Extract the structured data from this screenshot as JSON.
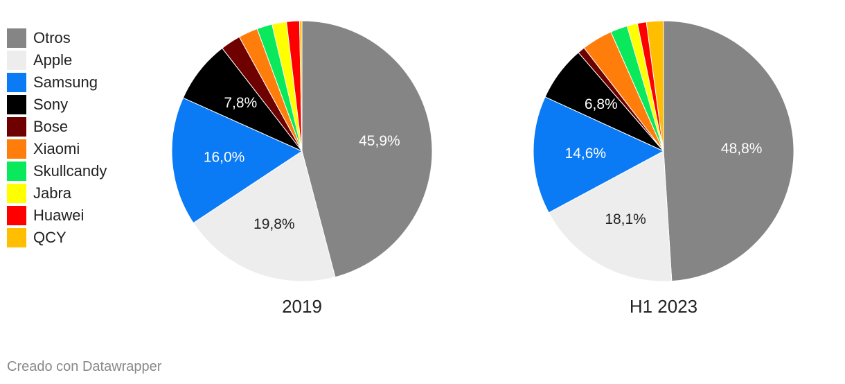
{
  "chart_data": [
    {
      "type": "pie",
      "title": "2019",
      "slices": [
        {
          "name": "Otros",
          "value": 45.9,
          "label": "45,9%"
        },
        {
          "name": "Apple",
          "value": 19.8,
          "label": "19,8%"
        },
        {
          "name": "Samsung",
          "value": 16.0,
          "label": "16,0%"
        },
        {
          "name": "Sony",
          "value": 7.8,
          "label": "7,8%"
        },
        {
          "name": "Bose",
          "value": 2.5,
          "label": ""
        },
        {
          "name": "Xiaomi",
          "value": 2.4,
          "label": ""
        },
        {
          "name": "Skullcandy",
          "value": 1.9,
          "label": ""
        },
        {
          "name": "Jabra",
          "value": 1.8,
          "label": ""
        },
        {
          "name": "Huawei",
          "value": 1.6,
          "label": ""
        },
        {
          "name": "QCY",
          "value": 0.3,
          "label": ""
        }
      ]
    },
    {
      "type": "pie",
      "title": "H1 2023",
      "slices": [
        {
          "name": "Otros",
          "value": 48.8,
          "label": "48,8%"
        },
        {
          "name": "Apple",
          "value": 18.1,
          "label": "18,1%"
        },
        {
          "name": "Samsung",
          "value": 14.6,
          "label": "14,6%"
        },
        {
          "name": "Sony",
          "value": 6.8,
          "label": "6,8%"
        },
        {
          "name": "Bose",
          "value": 0.9,
          "label": ""
        },
        {
          "name": "Xiaomi",
          "value": 3.8,
          "label": ""
        },
        {
          "name": "Skullcandy",
          "value": 2.1,
          "label": ""
        },
        {
          "name": "Jabra",
          "value": 1.3,
          "label": ""
        },
        {
          "name": "Huawei",
          "value": 1.1,
          "label": ""
        },
        {
          "name": "QCY",
          "value": 2.1,
          "label": ""
        }
      ]
    }
  ],
  "legend": [
    {
      "name": "Otros",
      "color": "#858585"
    },
    {
      "name": "Apple",
      "color": "#ededed"
    },
    {
      "name": "Samsung",
      "color": "#0a7af5"
    },
    {
      "name": "Sony",
      "color": "#000000"
    },
    {
      "name": "Bose",
      "color": "#6e0000"
    },
    {
      "name": "Xiaomi",
      "color": "#ff7d0a"
    },
    {
      "name": "Skullcandy",
      "color": "#0ae85b"
    },
    {
      "name": "Jabra",
      "color": "#ffff00"
    },
    {
      "name": "Huawei",
      "color": "#ff0000"
    },
    {
      "name": "QCY",
      "color": "#ffbf00"
    }
  ],
  "label_colors": {
    "Otros": "#ffffff",
    "Apple": "#222222",
    "Samsung": "#ffffff",
    "Sony": "#ffffff"
  },
  "footer": {
    "credit": "Creado con Datawrapper"
  }
}
